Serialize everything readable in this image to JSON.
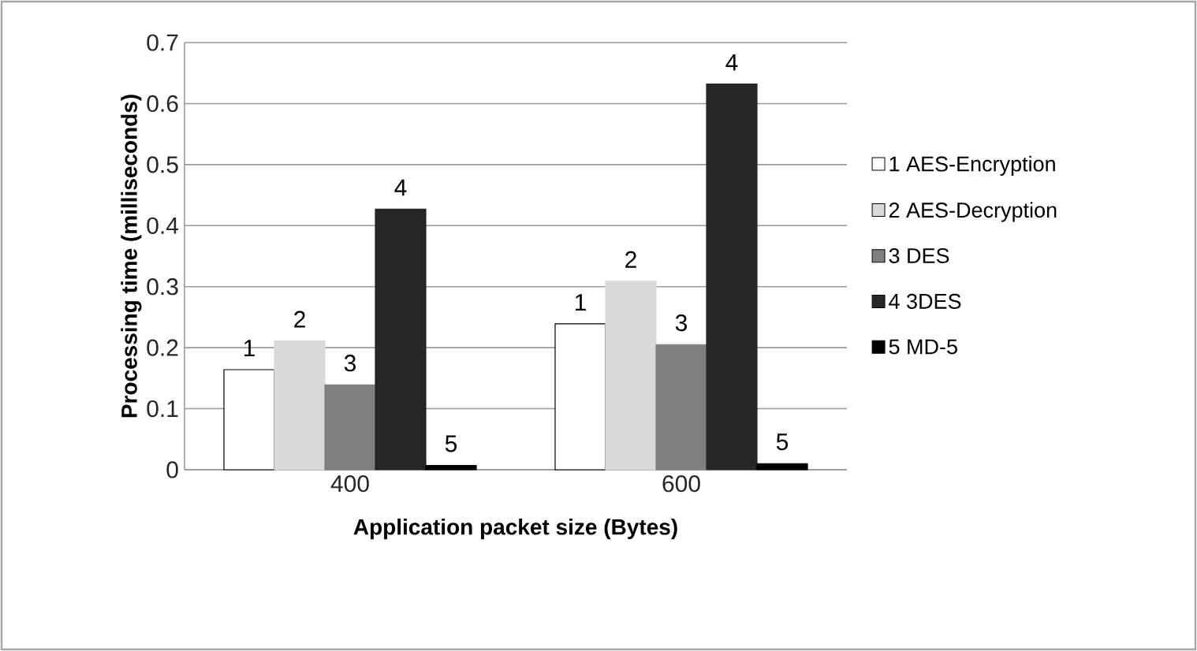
{
  "chart_data": {
    "type": "bar",
    "xlabel": "Application packet size (Bytes)",
    "ylabel": "Processing time (milliseconds)",
    "categories": [
      "400",
      "600"
    ],
    "series": [
      {
        "name": "1 AES-Encryption",
        "color": "#ffffff",
        "values": [
          0.164,
          0.239
        ]
      },
      {
        "name": "2 AES-Decryption",
        "color": "#d9d9d9",
        "values": [
          0.211,
          0.309
        ]
      },
      {
        "name": "3 DES",
        "color": "#808080",
        "values": [
          0.139,
          0.205
        ]
      },
      {
        "name": "4 3DES",
        "color": "#262626",
        "values": [
          0.427,
          0.632
        ]
      },
      {
        "name": "5 MD-5",
        "color": "#000000",
        "values": [
          0.007,
          0.01
        ]
      }
    ],
    "annotations": [
      "1",
      "2",
      "3",
      "4",
      "5",
      "1",
      "2",
      "3",
      "4",
      "5"
    ],
    "ylim": [
      0,
      0.7
    ],
    "yticks": [
      0,
      0.1,
      0.2,
      0.3,
      0.4,
      0.5,
      0.6,
      0.7
    ],
    "grid": "y",
    "legend": "right"
  }
}
